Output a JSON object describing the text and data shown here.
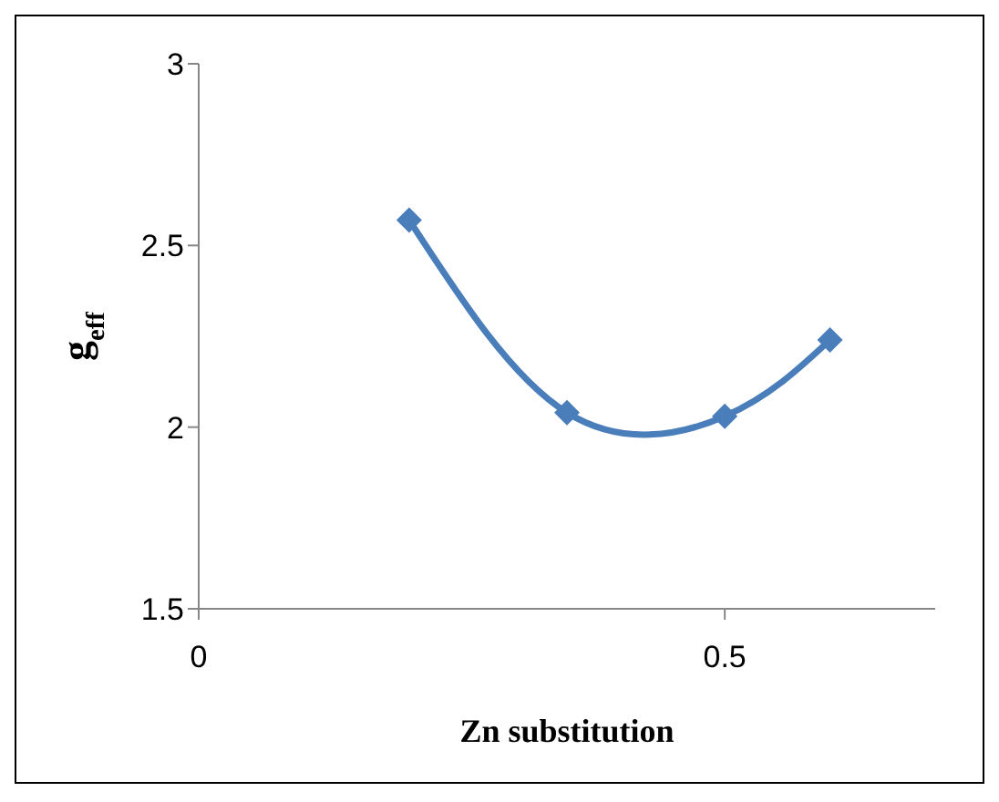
{
  "chart_data": {
    "type": "line",
    "xlabel": "Zn substitution",
    "ylabel": "g$_{eff}$",
    "x": [
      0.2,
      0.35,
      0.5,
      0.6
    ],
    "series": [
      {
        "color": "#4a7ebb",
        "values": [
          2.57,
          2.04,
          2.03,
          2.24
        ]
      }
    ],
    "xlim": [
      0,
      0.7
    ],
    "xticks": [
      0,
      0.5
    ],
    "ylim": [
      1.5,
      3
    ],
    "yticks": [
      1.5,
      2,
      2.5,
      3
    ],
    "marker": "diamond",
    "line_style": "solid"
  }
}
